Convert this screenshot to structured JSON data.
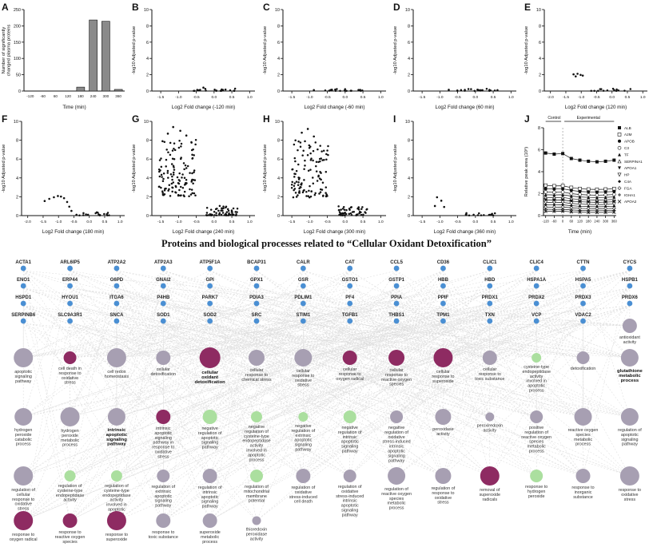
{
  "colors": {
    "protein_node": "#4a8fd3",
    "process_gray": "#a79fb2",
    "process_purple": "#8e2b62",
    "process_green": "#abdf9f",
    "edge": "#dedede",
    "bar_fill": "#8a8a8a",
    "point": "#111111"
  },
  "chart_data": [
    {
      "id": "A",
      "type": "bar",
      "ylabel_lines": [
        "Number of significantly",
        "changed plasma proteins"
      ],
      "xlabel": "Time (min)",
      "categories": [
        "-120",
        "-60",
        "60",
        "120",
        "180",
        "240",
        "300",
        "360"
      ],
      "values": [
        0,
        0,
        0,
        0,
        12,
        218,
        214,
        5
      ],
      "ylim": [
        0,
        250
      ],
      "yticks": [
        0,
        50,
        100,
        150,
        200,
        250
      ]
    },
    {
      "id": "B",
      "type": "scatter",
      "ylabel": "-log10 Adjusted p-value",
      "xlabel": "Log2 Fold change (-120 min)",
      "xlim": [
        -1.75,
        1.15
      ],
      "xticks": [
        -1.5,
        -1.0,
        -0.5,
        0.0,
        0.5,
        1.0
      ],
      "ylim": [
        0,
        10
      ],
      "yticks": [
        0,
        2,
        4,
        6,
        8,
        10
      ],
      "points": [
        [
          -0.3,
          0.42
        ]
      ],
      "clusters": [
        {
          "n": 22,
          "x": [
            -0.65,
            0.65
          ],
          "y": [
            0.02,
            0.3
          ],
          "dist": "floor"
        }
      ]
    },
    {
      "id": "C",
      "type": "scatter",
      "ylabel": "-log10 Adjusted p-value",
      "xlabel": "Log2 Fold change (-60 min)",
      "xlim": [
        -1.75,
        1.15
      ],
      "xticks": [
        -1.5,
        -1.0,
        -0.5,
        0.0,
        0.5,
        1.0
      ],
      "ylim": [
        0,
        10
      ],
      "yticks": [
        0,
        2,
        4,
        6,
        8,
        10
      ],
      "points": [
        [
          -0.88,
          0.12
        ]
      ],
      "clusters": [
        {
          "n": 20,
          "x": [
            -0.6,
            0.6
          ],
          "y": [
            0.02,
            0.25
          ],
          "dist": "floor"
        }
      ]
    },
    {
      "id": "D",
      "type": "scatter",
      "ylabel": "-log10 Adjusted p-value",
      "xlabel": "Log2 Fold change (60 min)",
      "xlim": [
        -1.75,
        1.15
      ],
      "xticks": [
        -1.5,
        -1.0,
        -0.5,
        0.0,
        0.5,
        1.0
      ],
      "ylim": [
        0,
        10
      ],
      "yticks": [
        0,
        2,
        4,
        6,
        8,
        10
      ],
      "points": [
        [
          -0.75,
          0.15
        ],
        [
          0.62,
          0.1
        ]
      ],
      "clusters": [
        {
          "n": 20,
          "x": [
            -0.55,
            0.55
          ],
          "y": [
            0.02,
            0.28
          ],
          "dist": "floor"
        }
      ]
    },
    {
      "id": "E",
      "type": "scatter",
      "ylabel": "-log10 Adjusted p-value",
      "xlabel": "Log2 Fold change (120 min)",
      "xlim": [
        -2.2,
        1.15
      ],
      "xticks": [
        -2.0,
        -1.5,
        -1.0,
        -0.5,
        0.0,
        0.5,
        1.0
      ],
      "ylim": [
        0,
        10
      ],
      "yticks": [
        0,
        2,
        4,
        6,
        8,
        10
      ],
      "points": [
        [
          -1.25,
          2.05
        ],
        [
          -1.12,
          2.12
        ],
        [
          -1.02,
          1.98
        ],
        [
          -0.95,
          1.9
        ],
        [
          -1.18,
          1.8
        ]
      ],
      "clusters": [
        {
          "n": 14,
          "x": [
            -0.7,
            0.6
          ],
          "y": [
            0.02,
            0.3
          ],
          "dist": "floor"
        }
      ]
    },
    {
      "id": "F",
      "type": "scatter",
      "ylabel": "-log10 Adjusted p-value",
      "xlabel": "Log2 Fold change (180 min)",
      "xlim": [
        -2.2,
        1.15
      ],
      "xticks": [
        -2.0,
        -1.5,
        -1.0,
        -0.5,
        0.0,
        0.5,
        1.0
      ],
      "ylim": [
        0,
        10
      ],
      "yticks": [
        0,
        2,
        4,
        6,
        8,
        10
      ],
      "points": [
        [
          -1.45,
          1.55
        ],
        [
          -1.3,
          1.78
        ],
        [
          -1.15,
          1.95
        ],
        [
          -1.02,
          2.08
        ],
        [
          -0.92,
          2.02
        ],
        [
          -0.82,
          1.85
        ],
        [
          -0.72,
          1.45
        ],
        [
          -0.65,
          0.95
        ],
        [
          -0.58,
          0.5
        ]
      ],
      "clusters": [
        {
          "n": 18,
          "x": [
            -0.45,
            0.7
          ],
          "y": [
            0.02,
            0.35
          ],
          "dist": "floor"
        }
      ]
    },
    {
      "id": "G",
      "type": "scatter",
      "ylabel": "-log10 Adjusted p-value",
      "xlabel": "Log2 Fold change (240 min)",
      "xlim": [
        -1.75,
        1.15
      ],
      "xticks": [
        -1.5,
        -1.0,
        -0.5,
        0.0,
        0.5,
        1.0
      ],
      "ylim": [
        0,
        10
      ],
      "yticks": [
        0,
        2,
        4,
        6,
        8,
        10
      ],
      "points": [
        [
          -1.15,
          9.4
        ],
        [
          -0.95,
          9.0
        ],
        [
          -1.3,
          8.7
        ],
        [
          -0.78,
          8.5
        ],
        [
          -1.45,
          7.9
        ]
      ],
      "clusters": [
        {
          "n": 125,
          "x": [
            -1.55,
            -0.5
          ],
          "y": [
            1.5,
            8.3
          ],
          "dist": "bell"
        },
        {
          "n": 55,
          "x": [
            -0.22,
            0.68
          ],
          "y": [
            0.02,
            1.05
          ],
          "dist": "floor"
        }
      ]
    },
    {
      "id": "H",
      "type": "scatter",
      "ylabel": "-log10 Adjusted p-value",
      "xlabel": "Log2 Fold change (300 min)",
      "xlim": [
        -1.75,
        1.15
      ],
      "xticks": [
        -1.5,
        -1.0,
        -0.5,
        0.0,
        0.5,
        1.0
      ],
      "ylim": [
        0,
        10
      ],
      "yticks": [
        0,
        2,
        4,
        6,
        8,
        10
      ],
      "points": [
        [
          -1.05,
          9.2
        ],
        [
          -1.22,
          8.8
        ],
        [
          -0.88,
          8.4
        ]
      ],
      "clusters": [
        {
          "n": 115,
          "x": [
            -1.5,
            -0.48
          ],
          "y": [
            1.4,
            8.0
          ],
          "dist": "bell"
        },
        {
          "n": 50,
          "x": [
            -0.2,
            0.62
          ],
          "y": [
            0.02,
            1.0
          ],
          "dist": "floor"
        }
      ]
    },
    {
      "id": "I",
      "type": "scatter",
      "ylabel": "-log10 Adjusted p-value",
      "xlabel": "Log2 Fold change (360 min)",
      "xlim": [
        -1.75,
        1.15
      ],
      "xticks": [
        -1.5,
        -1.0,
        -0.5,
        0.0,
        0.5,
        1.0
      ],
      "ylim": [
        0,
        10
      ],
      "yticks": [
        0,
        2,
        4,
        6,
        8,
        10
      ],
      "points": [
        [
          -1.08,
          1.95
        ],
        [
          -0.96,
          1.58
        ],
        [
          -1.14,
          1.02
        ],
        [
          -0.88,
          0.92
        ]
      ],
      "clusters": [
        {
          "n": 16,
          "x": [
            -0.3,
            0.55
          ],
          "y": [
            0.02,
            0.28
          ],
          "dist": "floor"
        }
      ]
    },
    {
      "id": "J",
      "type": "line",
      "ylabel": "Relative peak area (10⁸)",
      "xlabel": "Time (min)",
      "x": [
        -120,
        -60,
        0,
        60,
        120,
        180,
        240,
        300,
        360
      ],
      "ylim": [
        0,
        8
      ],
      "yticks": [
        0,
        2,
        4,
        6,
        8
      ],
      "regions": {
        "control": "Control",
        "experimental": "Experimental"
      },
      "series": [
        {
          "name": "ALB",
          "marker": "sq",
          "values": [
            5.7,
            5.6,
            5.65,
            5.2,
            5.05,
            4.95,
            4.9,
            4.95,
            5.05
          ]
        },
        {
          "name": "A2M",
          "marker": "sqo",
          "values": [
            2.75,
            2.7,
            2.72,
            2.55,
            2.45,
            2.4,
            2.38,
            2.4,
            2.45
          ]
        },
        {
          "name": "APOB",
          "marker": "ci",
          "values": [
            2.45,
            2.42,
            2.44,
            2.3,
            2.2,
            2.16,
            2.14,
            2.16,
            2.2
          ]
        },
        {
          "name": "C3",
          "marker": "cio",
          "values": [
            2.15,
            2.12,
            2.14,
            2.0,
            1.92,
            1.88,
            1.86,
            1.88,
            1.92
          ]
        },
        {
          "name": "TF",
          "marker": "tu",
          "values": [
            1.9,
            1.88,
            1.9,
            1.78,
            1.7,
            1.66,
            1.64,
            1.66,
            1.7
          ]
        },
        {
          "name": "SERPINA1",
          "marker": "tuo",
          "values": [
            1.65,
            1.63,
            1.65,
            1.54,
            1.47,
            1.44,
            1.42,
            1.44,
            1.47
          ]
        },
        {
          "name": "APOA1",
          "marker": "td",
          "values": [
            1.42,
            1.4,
            1.42,
            1.32,
            1.26,
            1.23,
            1.21,
            1.23,
            1.26
          ]
        },
        {
          "name": "HP",
          "marker": "tdo",
          "values": [
            1.2,
            1.18,
            1.2,
            1.11,
            1.05,
            1.02,
            1.0,
            1.02,
            1.05
          ]
        },
        {
          "name": "C4A",
          "marker": "di",
          "values": [
            0.98,
            0.97,
            0.98,
            0.9,
            0.85,
            0.82,
            0.8,
            0.82,
            0.85
          ]
        },
        {
          "name": "FGA",
          "marker": "dio",
          "values": [
            0.78,
            0.77,
            0.78,
            0.71,
            0.66,
            0.64,
            0.62,
            0.64,
            0.66
          ]
        },
        {
          "name": "IGHA1",
          "marker": "pl",
          "values": [
            0.58,
            0.57,
            0.58,
            0.52,
            0.48,
            0.46,
            0.45,
            0.46,
            0.48
          ]
        },
        {
          "name": "APOA2",
          "marker": "x",
          "values": [
            0.4,
            0.39,
            0.4,
            0.35,
            0.32,
            0.3,
            0.29,
            0.3,
            0.32
          ]
        }
      ]
    }
  ],
  "network": {
    "title": "Proteins and biological processes related to “Cellular Oxidant Detoxification”",
    "proteins": [
      "ACTA1",
      "ARL6IP5",
      "ATP2A2",
      "ATP2A3",
      "ATP5F1A",
      "BCAP31",
      "CALR",
      "CAT",
      "CCL5",
      "CD36",
      "CLIC1",
      "CLIC4",
      "CTTN",
      "CYCS",
      "ENO1",
      "ERP44",
      "G6PD",
      "GNAI2",
      "GPI",
      "GPX1",
      "GSR",
      "GSTO1",
      "GSTP1",
      "HBB",
      "HBD",
      "HSPA1A",
      "HSPA5",
      "HSPB1",
      "HSPD1",
      "HYOU1",
      "ITGA6",
      "P4HB",
      "PARK7",
      "PDIA3",
      "PDLIM1",
      "PF4",
      "PPIA",
      "PPIF",
      "PRDX1",
      "PRDX2",
      "PRDX3",
      "PRDX6",
      "SERPINB6",
      "SLC9A3R1",
      "SNCA",
      "SOD1",
      "SOD2",
      "SRC",
      "STIM1",
      "TGFB1",
      "THBS1",
      "TPM1",
      "TXN",
      "VCP",
      "VDAC2"
    ],
    "processes": [
      {
        "label": "antioxidant activity",
        "color": "gray",
        "r": 9
      },
      {
        "label": "apoptotic signaling pathway",
        "color": "gray",
        "r": 12
      },
      {
        "label": "cell death in response to oxidative stress",
        "color": "purple",
        "r": 8
      },
      {
        "label": "cell redox homeostasis",
        "color": "gray",
        "r": 12
      },
      {
        "label": "cellular detoxification",
        "color": "gray",
        "r": 9
      },
      {
        "label": "cellular oxidant detoxification",
        "color": "purple",
        "r": 13,
        "bold": true
      },
      {
        "label": "cellular response to chemical stress",
        "color": "gray",
        "r": 10
      },
      {
        "label": "cellular response to oxidative stress",
        "color": "gray",
        "r": 11
      },
      {
        "label": "cellular response to oxygen radical",
        "color": "purple",
        "r": 9
      },
      {
        "label": "cellular response to reactive oxygen species",
        "color": "purple",
        "r": 10
      },
      {
        "label": "cellular response to superoxide",
        "color": "purple",
        "r": 12
      },
      {
        "label": "cellular response to toxic substance",
        "color": "gray",
        "r": 9
      },
      {
        "label": "cysteine-type endopeptidase activity involved in apoptotic process",
        "color": "green",
        "r": 6
      },
      {
        "label": "detoxification",
        "color": "gray",
        "r": 8
      },
      {
        "label": "glutathione metabolic process",
        "color": "gray",
        "r": 11,
        "bold": true
      },
      {
        "label": "hydrogen peroxide catabolic process",
        "color": "gray",
        "r": 11
      },
      {
        "label": "hydrogen peroxide metabolic process",
        "color": "gray",
        "r": 12
      },
      {
        "label": "intrinsic apoptotic signaling pathway",
        "color": "gray",
        "r": 11,
        "bold": true
      },
      {
        "label": "intrinsic apoptotic signaling pathway in response to oxidative stress",
        "color": "purple",
        "r": 9
      },
      {
        "label": "negative regulation of apoptotic signaling pathway",
        "color": "green",
        "r": 9
      },
      {
        "label": "negative regulation of cysteine-type endopeptidase activity involved in apoptotic process",
        "color": "green",
        "r": 7
      },
      {
        "label": "negative regulation of extrinsic apoptotic signaling pathway",
        "color": "green",
        "r": 6
      },
      {
        "label": "negative regulation of intrinsic apoptotic signaling pathway",
        "color": "green",
        "r": 8
      },
      {
        "label": "negative regulation of oxidative stress-induced intrinsic apoptotic signaling pathway",
        "color": "gray",
        "r": 8
      },
      {
        "label": "peroxidase activity",
        "color": "gray",
        "r": 10
      },
      {
        "label": "peroxiredoxin activity",
        "color": "gray",
        "r": 5.5
      },
      {
        "label": "positive regulation of reactive oxygen species metabolic process",
        "color": "gray",
        "r": 8
      },
      {
        "label": "reactive oxygen species metabolic process",
        "color": "gray",
        "r": 11
      },
      {
        "label": "regulation of apoptotic signaling pathway",
        "color": "gray",
        "r": 11
      },
      {
        "label": "regulation of cellular response to oxidative stress",
        "color": "gray",
        "r": 12
      },
      {
        "label": "regulation of cysteine-type endopeptidase activity",
        "color": "green",
        "r": 7
      },
      {
        "label": "regulation of cysteine-type endopeptidase activity involved in apoptotic process",
        "color": "green",
        "r": 7
      },
      {
        "label": "regulation of extrinsic apoptotic signaling pathway",
        "color": "gray",
        "r": 8
      },
      {
        "label": "regulation of intrinsic apoptotic signaling pathway",
        "color": "gray",
        "r": 9
      },
      {
        "label": "regulation of mitochondrial membrane potential",
        "color": "green",
        "r": 8
      },
      {
        "label": "regulation of oxidative stress-induced cell death",
        "color": "gray",
        "r": 9
      },
      {
        "label": "regulation of oxidative stress-induced intrinsic apoptotic signaling pathway",
        "color": "gray",
        "r": 8
      },
      {
        "label": "regulation of reactive oxygen species metabolic process",
        "color": "gray",
        "r": 11
      },
      {
        "label": "regulation of response to oxidative stress",
        "color": "gray",
        "r": 10
      },
      {
        "label": "removal of superoxide radicals",
        "color": "purple",
        "r": 12
      },
      {
        "label": "response to hydrogen peroxide",
        "color": "green",
        "r": 8
      },
      {
        "label": "response to inorganic substance",
        "color": "gray",
        "r": 9
      },
      {
        "label": "response to oxidative stress",
        "color": "gray",
        "r": 12
      },
      {
        "label": "response to oxygen radical",
        "color": "purple",
        "r": 12
      },
      {
        "label": "response to reactive oxygen species",
        "color": "purple",
        "r": 9
      },
      {
        "label": "response to superoxide",
        "color": "purple",
        "r": 12
      },
      {
        "label": "response to toxic substance",
        "color": "gray",
        "r": 9
      },
      {
        "label": "superoxide metabolic process",
        "color": "gray",
        "r": 9
      },
      {
        "label": "thioredoxin peroxidase activity",
        "color": "gray",
        "r": 5.5
      }
    ]
  }
}
